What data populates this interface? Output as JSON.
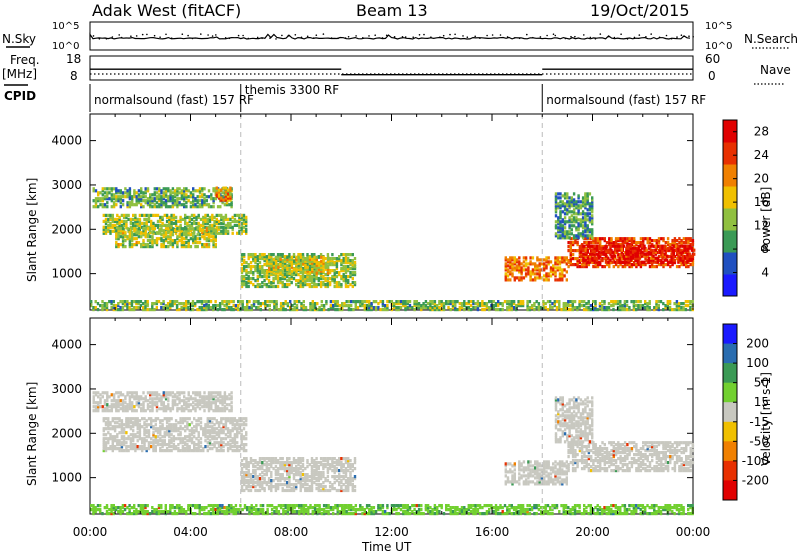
{
  "header": {
    "station": "Adak West (fitACF)",
    "beam": "Beam 13",
    "date": "19/Oct/2015"
  },
  "summary": {
    "nsky_label": "N.Sky",
    "nsky_ticks": [
      "10^5",
      "10^0"
    ],
    "nsearch_label": "N.Search",
    "nsearch_ticks": [
      "10^5",
      "10^0"
    ],
    "freq_label": "Freq.",
    "freq_unit": "[MHz]",
    "freq_ticks": [
      "18",
      "8"
    ],
    "nave_label": "Nave",
    "nave_ticks": [
      "60",
      "0"
    ],
    "cpid_label": "CPID",
    "cpid_segments": [
      {
        "label": "normalsound (fast) 157 RF",
        "start": 0,
        "end": 6
      },
      {
        "label": "themis 3300 RF",
        "start": 6,
        "end": 18
      },
      {
        "label": "normalsound (fast) 157 RF",
        "start": 18,
        "end": 24
      }
    ],
    "freq_mhz": [
      {
        "start": 0,
        "end": 10,
        "value": 12.5
      },
      {
        "start": 10,
        "end": 18,
        "value": 10.2
      },
      {
        "start": 18,
        "end": 24,
        "value": 12.5
      }
    ]
  },
  "chart_data": [
    {
      "type": "heatmap",
      "name": "power",
      "ylabel": "Slant Range [km]",
      "xlabel": "Time UT",
      "xticks": [
        "00:00",
        "04:00",
        "08:00",
        "12:00",
        "16:00",
        "20:00",
        "00:00"
      ],
      "yticks": [
        1000,
        2000,
        3000,
        4000
      ],
      "xlim": [
        0,
        24
      ],
      "ylim": [
        180,
        4600
      ],
      "colorbar_label": "Power [dB]",
      "colorbar_ticks": [
        4,
        8,
        12,
        16,
        20,
        24,
        28
      ],
      "colorbar_colors": [
        "#1a1aff",
        "#2050c0",
        "#3a9a55",
        "#90c040",
        "#f0c000",
        "#f08000",
        "#e83000",
        "#e00000"
      ],
      "colorbar_range": [
        0,
        30
      ],
      "regions": [
        {
          "t0": 0.1,
          "t1": 5.6,
          "r0": 2500,
          "r1": 2950,
          "p": 11
        },
        {
          "t0": 0.5,
          "t1": 6.2,
          "r0": 1900,
          "r1": 2350,
          "p": 13
        },
        {
          "t0": 1.0,
          "t1": 5.0,
          "r0": 1600,
          "r1": 2050,
          "p": 14
        },
        {
          "t0": 5.0,
          "t1": 5.6,
          "r0": 2650,
          "r1": 2950,
          "p": 19
        },
        {
          "t0": 6.0,
          "t1": 10.5,
          "r0": 700,
          "r1": 1450,
          "p": 13
        },
        {
          "t0": 7.0,
          "t1": 9.5,
          "r0": 1000,
          "r1": 1400,
          "p": 15
        },
        {
          "t0": 16.5,
          "t1": 19.0,
          "r0": 850,
          "r1": 1350,
          "p": 21
        },
        {
          "t0": 19.0,
          "t1": 24.0,
          "r0": 1150,
          "r1": 1800,
          "p": 24
        },
        {
          "t0": 19.5,
          "t1": 24.0,
          "r0": 1250,
          "r1": 1650,
          "p": 27
        },
        {
          "t0": 18.5,
          "t1": 20.0,
          "r0": 1800,
          "r1": 2800,
          "p": 10
        },
        {
          "t0": 0.0,
          "t1": 24.0,
          "r0": 180,
          "r1": 380,
          "p": 12
        }
      ]
    },
    {
      "type": "heatmap",
      "name": "velocity",
      "ylabel": "Slant Range [km]",
      "xlabel": "Time UT",
      "xticks": [
        "00:00",
        "04:00",
        "08:00",
        "12:00",
        "16:00",
        "20:00",
        "00:00"
      ],
      "yticks": [
        1000,
        2000,
        3000,
        4000
      ],
      "xlim": [
        0,
        24
      ],
      "ylim": [
        180,
        4600
      ],
      "colorbar_label": "Velocity [m s-1]",
      "colorbar_ticks": [
        200,
        100,
        50,
        15,
        -15,
        -50,
        -100,
        -200
      ],
      "colorbar_colors": [
        "#1a1aff",
        "#2a6db0",
        "#3b9a55",
        "#72d030",
        "#c8c8c0",
        "#f0c000",
        "#f08000",
        "#e83000",
        "#e00000"
      ],
      "regions": [
        {
          "t0": 0.1,
          "t1": 5.6,
          "r0": 2500,
          "r1": 2950,
          "v": 0
        },
        {
          "t0": 0.5,
          "t1": 6.2,
          "r0": 1600,
          "r1": 2350,
          "v": 0
        },
        {
          "t0": 6.0,
          "t1": 10.5,
          "r0": 700,
          "r1": 1450,
          "v": 0
        },
        {
          "t0": 16.5,
          "t1": 19.0,
          "r0": 850,
          "r1": 1350,
          "v": 0
        },
        {
          "t0": 19.0,
          "t1": 24.0,
          "r0": 1150,
          "r1": 1800,
          "v": 0
        },
        {
          "t0": 18.5,
          "t1": 20.0,
          "r0": 1800,
          "r1": 2800,
          "v": 0
        },
        {
          "t0": 0.0,
          "t1": 24.0,
          "r0": 180,
          "r1": 380,
          "v": 40
        }
      ]
    }
  ]
}
